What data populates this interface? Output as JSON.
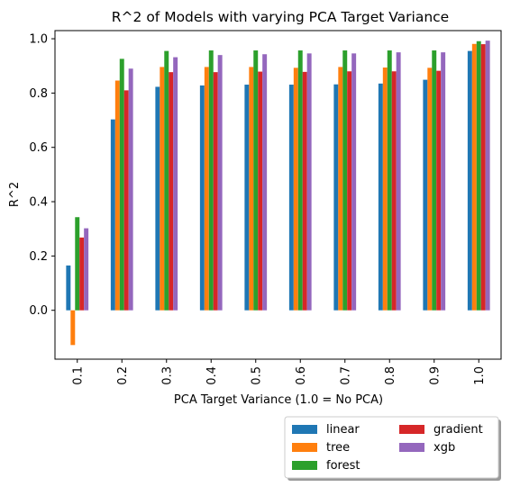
{
  "chart_data": {
    "type": "bar",
    "title": "R^2 of Models with varying PCA Target Variance",
    "xlabel": "PCA Target Variance (1.0 = No PCA)",
    "ylabel": "R^2",
    "categories": [
      "0.1",
      "0.2",
      "0.3",
      "0.4",
      "0.5",
      "0.6",
      "0.7",
      "0.8",
      "0.9",
      "1.0"
    ],
    "ylim": [
      -0.18,
      1.03
    ],
    "yticks": [
      "0.0",
      "0.2",
      "0.4",
      "0.6",
      "0.8",
      "1.0"
    ],
    "grid": false,
    "legend": {
      "placement": "bottom-right, below plot",
      "columns": 2
    },
    "series": [
      {
        "name": "linear",
        "color": "#1f77b4",
        "values": [
          0.165,
          0.703,
          0.823,
          0.828,
          0.831,
          0.831,
          0.832,
          0.835,
          0.849,
          0.955
        ]
      },
      {
        "name": "tree",
        "color": "#ff7f0e",
        "values": [
          -0.128,
          0.846,
          0.896,
          0.896,
          0.896,
          0.893,
          0.896,
          0.894,
          0.893,
          0.981
        ]
      },
      {
        "name": "forest",
        "color": "#2ca02c",
        "values": [
          0.343,
          0.926,
          0.955,
          0.957,
          0.957,
          0.957,
          0.957,
          0.957,
          0.957,
          0.991
        ]
      },
      {
        "name": "gradient",
        "color": "#d62728",
        "values": [
          0.268,
          0.81,
          0.877,
          0.877,
          0.879,
          0.878,
          0.88,
          0.88,
          0.882,
          0.98
        ]
      },
      {
        "name": "xgb",
        "color": "#9467bd",
        "values": [
          0.302,
          0.89,
          0.932,
          0.94,
          0.943,
          0.946,
          0.946,
          0.95,
          0.95,
          0.993
        ]
      }
    ]
  }
}
